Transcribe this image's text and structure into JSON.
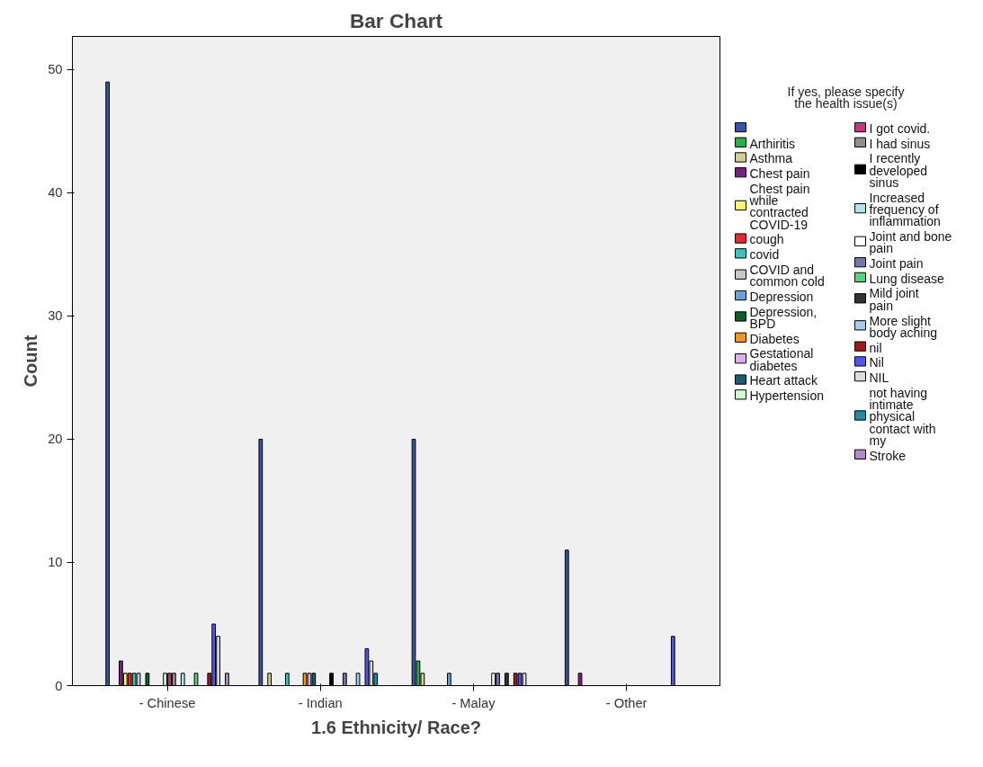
{
  "chart_data": {
    "type": "bar",
    "title": "Bar Chart",
    "xlabel": "1.6 Ethnicity/ Race?",
    "ylabel": "Count",
    "legend_title": "If yes, please specify the health issue(s)",
    "categories": [
      "- Chinese",
      "- Indian",
      "- Malay",
      "- Other"
    ],
    "ylim": [
      0,
      52.7
    ],
    "yticks": [
      0,
      10,
      20,
      30,
      40,
      50
    ],
    "grid": false,
    "legend": "right",
    "series": [
      {
        "color": "#3953a4",
        "values": [
          49,
          20,
          20,
          11
        ]
      },
      {
        "name": "Arthiritis",
        "color": "#2ab04a",
        "values": [
          null,
          null,
          2,
          null
        ]
      },
      {
        "name": "Asthma",
        "color": "#d3ce97",
        "values": [
          null,
          1,
          1,
          null
        ]
      },
      {
        "name": "Chest pain",
        "color": "#7b1f7f",
        "values": [
          2,
          null,
          null,
          1
        ]
      },
      {
        "name": "Chest pain while contracted COVID-19",
        "color": "#f9f46d",
        "values": [
          1,
          null,
          null,
          null
        ]
      },
      {
        "name": "cough",
        "color": "#e8262d",
        "values": [
          1,
          null,
          null,
          null
        ]
      },
      {
        "name": "covid",
        "color": "#3fc1c2",
        "values": [
          1,
          1,
          null,
          null
        ]
      },
      {
        "name": "COVID and common cold",
        "color": "#c8c8c8",
        "values": [
          1,
          null,
          null,
          null
        ]
      },
      {
        "name": "Depression",
        "color": "#6f9fd8",
        "values": [
          null,
          null,
          1,
          null
        ]
      },
      {
        "name": "Depression, BPD",
        "color": "#0e5b2c",
        "values": [
          1,
          null,
          null,
          null
        ]
      },
      {
        "name": "Diabetes",
        "color": "#f7941d",
        "values": [
          null,
          1,
          null,
          null
        ]
      },
      {
        "name": "Gestational diabetes",
        "color": "#d9b0e9",
        "values": [
          null,
          1,
          null,
          null
        ]
      },
      {
        "name": "Heart attack",
        "color": "#1d5a6f",
        "values": [
          null,
          1,
          null,
          null
        ]
      },
      {
        "name": "Hypertension",
        "color": "#cdfdd0",
        "values": [
          1,
          null,
          null,
          null
        ]
      },
      {
        "name": "I got covid.",
        "color": "#c0397a",
        "values": [
          1,
          null,
          null,
          null
        ]
      },
      {
        "name": "I had sinus",
        "color": "#8f8f8f",
        "values": [
          1,
          null,
          null,
          null
        ]
      },
      {
        "name": "I recently developed sinus",
        "color": "#000000",
        "values": [
          null,
          1,
          null,
          null
        ]
      },
      {
        "name": "Increased frequency of inflammation",
        "color": "#b1e3e8",
        "values": [
          1,
          null,
          null,
          null
        ]
      },
      {
        "name": "Joint and bone pain",
        "color": "#ffffff",
        "values": [
          null,
          null,
          1,
          null
        ]
      },
      {
        "name": "Joint pain",
        "color": "#7577a8",
        "values": [
          null,
          1,
          1,
          null
        ]
      },
      {
        "name": "Lung disease",
        "color": "#5ad07a",
        "values": [
          1,
          null,
          null,
          null
        ]
      },
      {
        "name": "Mild joint pain",
        "color": "#333333",
        "values": [
          null,
          null,
          1,
          null
        ]
      },
      {
        "name": "More slight body aching",
        "color": "#a6cbef",
        "values": [
          null,
          1,
          null,
          null
        ]
      },
      {
        "name": "nil",
        "color": "#9d1b1f",
        "values": [
          1,
          null,
          1,
          null
        ]
      },
      {
        "name": "Nil",
        "color": "#5452f2",
        "values": [
          5,
          3,
          1,
          4
        ]
      },
      {
        "name": "NIL",
        "color": "#dcdcdc",
        "values": [
          4,
          2,
          1,
          null
        ]
      },
      {
        "name": "not having intimate physical contact with my",
        "color": "#218ba6",
        "values": [
          null,
          1,
          null,
          null
        ]
      },
      {
        "name": "Stroke",
        "color": "#b08dc5",
        "values": [
          1,
          null,
          null,
          null
        ]
      }
    ]
  }
}
